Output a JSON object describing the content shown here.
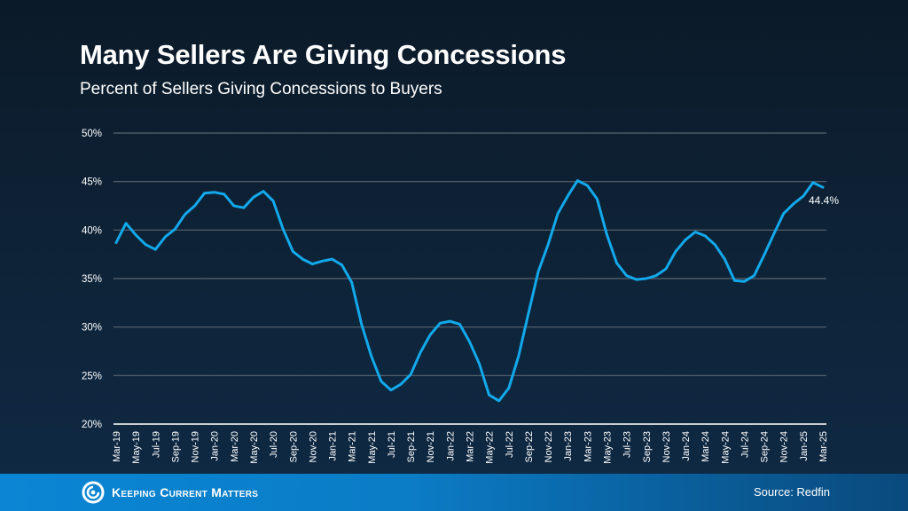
{
  "header": {
    "title": "Many Sellers Are Giving Concessions",
    "subtitle": "Percent of Sellers Giving Concessions to Buyers"
  },
  "footer": {
    "brand": "Keeping Current Matters",
    "logo_icon": "swirl-logo-icon",
    "source": "Source: Redfin"
  },
  "colors": {
    "line": "#12a9ec",
    "grid": "#5a6670",
    "footer": "#0b7cc6"
  },
  "chart_data": {
    "type": "line",
    "title": "Many Sellers Are Giving Concessions",
    "subtitle": "Percent of Sellers Giving Concessions to Buyers",
    "xlabel": "",
    "ylabel": "",
    "ylim": [
      20,
      50
    ],
    "yticks": [
      20,
      25,
      30,
      35,
      40,
      45,
      50
    ],
    "ytick_labels": [
      "20%",
      "25%",
      "30%",
      "35%",
      "40%",
      "45%",
      "50%"
    ],
    "grid": true,
    "legend": "none",
    "xtick_labels": [
      "Mar-19",
      "May-19",
      "Jul-19",
      "Sep-19",
      "Nov-19",
      "Jan-20",
      "Mar-20",
      "May-20",
      "Jul-20",
      "Sep-20",
      "Nov-20",
      "Jan-21",
      "Mar-21",
      "May-21",
      "Jul-21",
      "Sep-21",
      "Nov-21",
      "Jan-22",
      "Mar-22",
      "May-22",
      "Jul-22",
      "Sep-22",
      "Nov-22",
      "Jan-23",
      "Mar-23",
      "May-23",
      "Jul-23",
      "Sep-23",
      "Nov-23",
      "Jan-24",
      "Mar-24",
      "May-24",
      "Jul-24",
      "Sep-24",
      "Nov-24",
      "Jan-25",
      "Mar-25"
    ],
    "series": [
      {
        "name": "Percent of Sellers Giving Concessions",
        "x": [
          "Mar-19",
          "Apr-19",
          "May-19",
          "Jun-19",
          "Jul-19",
          "Aug-19",
          "Sep-19",
          "Oct-19",
          "Nov-19",
          "Dec-19",
          "Jan-20",
          "Feb-20",
          "Mar-20",
          "Apr-20",
          "May-20",
          "Jun-20",
          "Jul-20",
          "Aug-20",
          "Sep-20",
          "Oct-20",
          "Nov-20",
          "Dec-20",
          "Jan-21",
          "Feb-21",
          "Mar-21",
          "Apr-21",
          "May-21",
          "Jun-21",
          "Jul-21",
          "Aug-21",
          "Sep-21",
          "Oct-21",
          "Nov-21",
          "Dec-21",
          "Jan-22",
          "Feb-22",
          "Mar-22",
          "Apr-22",
          "May-22",
          "Jun-22",
          "Jul-22",
          "Aug-22",
          "Sep-22",
          "Oct-22",
          "Nov-22",
          "Dec-22",
          "Jan-23",
          "Feb-23",
          "Mar-23",
          "Apr-23",
          "May-23",
          "Jun-23",
          "Jul-23",
          "Aug-23",
          "Sep-23",
          "Oct-23",
          "Nov-23",
          "Dec-23",
          "Jan-24",
          "Feb-24",
          "Mar-24",
          "Apr-24",
          "May-24",
          "Jun-24",
          "Jul-24",
          "Aug-24",
          "Sep-24",
          "Oct-24",
          "Nov-24",
          "Dec-24",
          "Jan-25",
          "Feb-25",
          "Mar-25"
        ],
        "values": [
          38.7,
          40.7,
          39.5,
          38.5,
          38.0,
          39.3,
          40.1,
          41.6,
          42.5,
          43.8,
          43.9,
          43.7,
          42.5,
          42.3,
          43.4,
          44.0,
          43.0,
          40.1,
          37.8,
          37.0,
          36.5,
          36.8,
          37.0,
          36.4,
          34.6,
          30.3,
          27.0,
          24.4,
          23.5,
          24.1,
          25.1,
          27.4,
          29.2,
          30.4,
          30.6,
          30.3,
          28.5,
          26.2,
          23.0,
          22.4,
          23.7,
          27.0,
          31.4,
          35.7,
          38.5,
          41.7,
          43.5,
          45.1,
          44.6,
          43.2,
          39.5,
          36.6,
          35.3,
          34.9,
          35.0,
          35.3,
          36.0,
          37.8,
          39.0,
          39.8,
          39.4,
          38.5,
          37.0,
          34.8,
          34.7,
          35.3,
          37.4,
          39.6,
          41.7,
          42.7,
          43.5,
          44.9,
          44.4
        ]
      }
    ],
    "annotations": [
      {
        "x": "Mar-25",
        "text": "44.4%"
      }
    ]
  }
}
